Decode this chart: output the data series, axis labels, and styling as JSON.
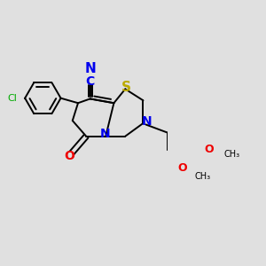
{
  "background_color": "#e0e0e0",
  "bond_color": "#000000",
  "bond_width": 1.4,
  "atom_colors": {
    "N": "#0000ee",
    "O": "#ee0000",
    "S": "#bbaa00",
    "Cl": "#00aa00"
  },
  "font_size": 9,
  "figsize": [
    3.0,
    3.0
  ],
  "dpi": 100,
  "xlim": [
    -2.2,
    2.2
  ],
  "ylim": [
    -2.4,
    2.0
  ]
}
